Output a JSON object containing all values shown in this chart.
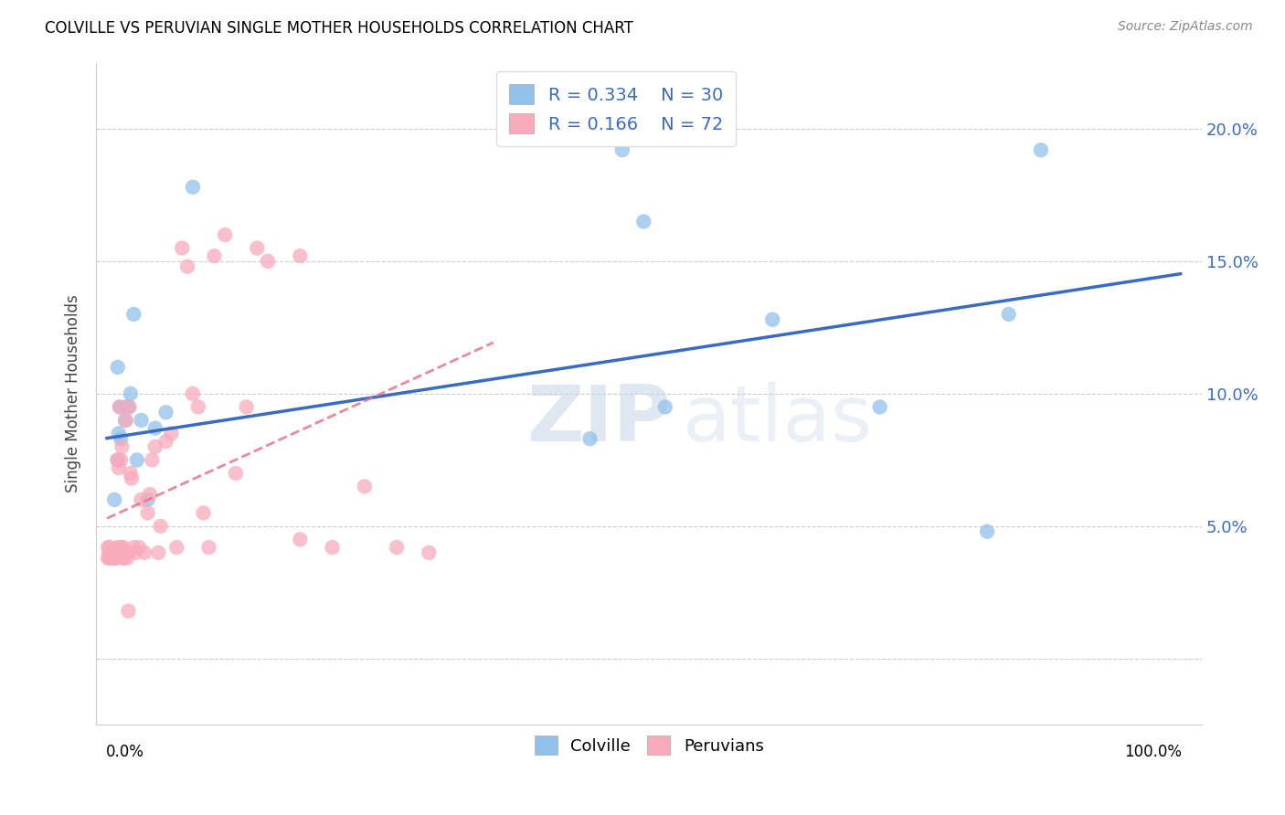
{
  "title": "COLVILLE VS PERUVIAN SINGLE MOTHER HOUSEHOLDS CORRELATION CHART",
  "source": "Source: ZipAtlas.com",
  "ylabel": "Single Mother Households",
  "y_ticks": [
    0.0,
    0.05,
    0.1,
    0.15,
    0.2
  ],
  "y_tick_labels": [
    "",
    "5.0%",
    "10.0%",
    "15.0%",
    "20.0%"
  ],
  "x_range": [
    -0.01,
    1.02
  ],
  "y_range": [
    -0.025,
    0.225
  ],
  "colville_R": 0.334,
  "colville_N": 30,
  "peruvian_R": 0.166,
  "peruvian_N": 72,
  "colville_color": "#92C0EC",
  "peruvian_color": "#F9AABB",
  "colville_line_color": "#3A6BC4",
  "peruvian_line_color": "#E8748A",
  "watermark_zip": "ZIP",
  "watermark_atlas": "atlas",
  "colville_x": [
    0.003,
    0.005,
    0.007,
    0.009,
    0.01,
    0.011,
    0.013,
    0.015,
    0.017,
    0.02,
    0.022,
    0.025,
    0.028,
    0.032,
    0.038,
    0.01,
    0.012,
    0.018,
    0.045,
    0.055,
    0.08,
    0.45,
    0.48,
    0.5,
    0.52,
    0.62,
    0.72,
    0.82,
    0.84,
    0.87
  ],
  "colville_y": [
    0.038,
    0.04,
    0.06,
    0.04,
    0.075,
    0.085,
    0.083,
    0.04,
    0.09,
    0.095,
    0.1,
    0.13,
    0.075,
    0.09,
    0.06,
    0.11,
    0.095,
    0.095,
    0.087,
    0.093,
    0.178,
    0.083,
    0.192,
    0.165,
    0.095,
    0.128,
    0.095,
    0.048,
    0.13,
    0.192
  ],
  "peruvian_x": [
    0.001,
    0.001,
    0.002,
    0.002,
    0.003,
    0.003,
    0.004,
    0.004,
    0.005,
    0.005,
    0.006,
    0.006,
    0.007,
    0.007,
    0.008,
    0.008,
    0.009,
    0.009,
    0.01,
    0.01,
    0.01,
    0.011,
    0.011,
    0.012,
    0.012,
    0.013,
    0.013,
    0.014,
    0.014,
    0.015,
    0.015,
    0.016,
    0.017,
    0.018,
    0.019,
    0.02,
    0.021,
    0.022,
    0.023,
    0.025,
    0.027,
    0.03,
    0.032,
    0.035,
    0.038,
    0.04,
    0.042,
    0.045,
    0.048,
    0.05,
    0.055,
    0.06,
    0.065,
    0.07,
    0.075,
    0.08,
    0.085,
    0.09,
    0.095,
    0.1,
    0.11,
    0.12,
    0.13,
    0.14,
    0.15,
    0.18,
    0.21,
    0.24,
    0.27,
    0.3,
    0.18,
    0.02
  ],
  "peruvian_y": [
    0.038,
    0.042,
    0.04,
    0.038,
    0.04,
    0.042,
    0.038,
    0.04,
    0.04,
    0.038,
    0.04,
    0.038,
    0.04,
    0.039,
    0.038,
    0.04,
    0.04,
    0.038,
    0.04,
    0.075,
    0.042,
    0.072,
    0.04,
    0.04,
    0.095,
    0.042,
    0.075,
    0.039,
    0.08,
    0.038,
    0.042,
    0.038,
    0.04,
    0.09,
    0.038,
    0.04,
    0.095,
    0.07,
    0.068,
    0.042,
    0.04,
    0.042,
    0.06,
    0.04,
    0.055,
    0.062,
    0.075,
    0.08,
    0.04,
    0.05,
    0.082,
    0.085,
    0.042,
    0.155,
    0.148,
    0.1,
    0.095,
    0.055,
    0.042,
    0.152,
    0.16,
    0.07,
    0.095,
    0.155,
    0.15,
    0.152,
    0.042,
    0.065,
    0.042,
    0.04,
    0.045,
    0.018
  ]
}
